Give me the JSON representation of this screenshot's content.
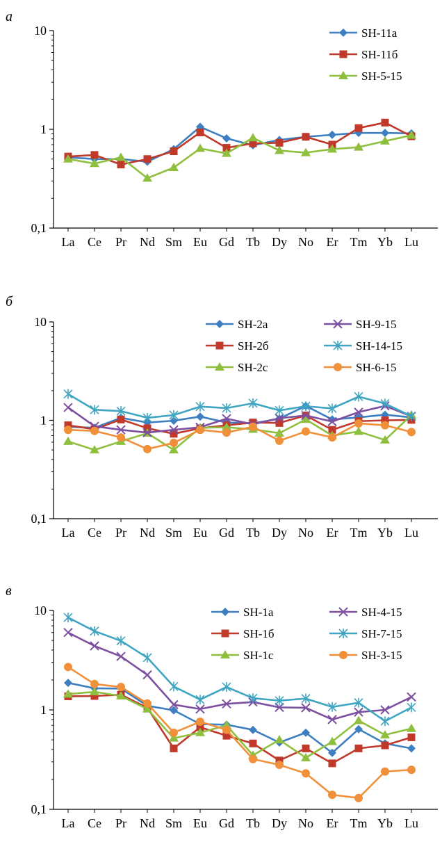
{
  "chart_data": [
    {
      "type": "line",
      "panel_label": "а",
      "yscale": "log",
      "ylim": [
        0.1,
        10
      ],
      "y_tick_labels": [
        "10",
        "1",
        "0,1"
      ],
      "categories": [
        "La",
        "Ce",
        "Pr",
        "Nd",
        "Sm",
        "Eu",
        "Gd",
        "Tb",
        "Dy",
        "No",
        "Er",
        "Tm",
        "Yb",
        "Lu"
      ],
      "legend_columns": 1,
      "legend_placement": "top-right",
      "series": [
        {
          "name": "SH-11a",
          "color": "#3e7fc1",
          "marker": "diamond",
          "values": [
            0.52,
            0.5,
            0.5,
            0.47,
            0.63,
            1.06,
            0.81,
            0.69,
            0.78,
            0.84,
            0.88,
            0.92,
            0.92,
            0.91
          ]
        },
        {
          "name": "SH-11б",
          "color": "#c0392b",
          "marker": "square",
          "values": [
            0.53,
            0.55,
            0.44,
            0.5,
            0.6,
            0.93,
            0.65,
            0.72,
            0.73,
            0.84,
            0.7,
            1.03,
            1.17,
            0.85
          ]
        },
        {
          "name": "SH-5-15",
          "color": "#8fbf3f",
          "marker": "triangle",
          "values": [
            0.5,
            0.45,
            0.52,
            0.32,
            0.41,
            0.64,
            0.57,
            0.82,
            0.61,
            0.58,
            0.63,
            0.66,
            0.76,
            0.87
          ]
        }
      ]
    },
    {
      "type": "line",
      "panel_label": "б",
      "yscale": "log",
      "ylim": [
        0.1,
        10
      ],
      "y_tick_labels": [
        "10",
        "1",
        "0,1"
      ],
      "categories": [
        "La",
        "Ce",
        "Pr",
        "Nd",
        "Sm",
        "Eu",
        "Gd",
        "Tb",
        "Dy",
        "No",
        "Er",
        "Tm",
        "Yb",
        "Lu"
      ],
      "legend_columns": 2,
      "legend_placement": "top-right",
      "series": [
        {
          "name": "SH-2a",
          "color": "#3e7fc1",
          "marker": "diamond",
          "values": [
            0.86,
            0.84,
            1.06,
            0.95,
            0.99,
            1.09,
            0.95,
            0.93,
            1.04,
            1.4,
            1.02,
            1.07,
            1.14,
            1.07
          ]
        },
        {
          "name": "SH-2б",
          "color": "#c0392b",
          "marker": "square",
          "values": [
            0.89,
            0.81,
            1.02,
            0.83,
            0.73,
            0.83,
            0.89,
            0.95,
            0.94,
            1.12,
            0.8,
            0.98,
            1.0,
            1.01
          ]
        },
        {
          "name": "SH-2c",
          "color": "#8fbf3f",
          "marker": "triangle",
          "values": [
            0.61,
            0.5,
            0.61,
            0.74,
            0.5,
            0.84,
            0.85,
            0.81,
            0.74,
            1.02,
            0.7,
            0.77,
            0.63,
            1.13
          ]
        },
        {
          "name": "SH-9-15",
          "color": "#7d4fa0",
          "marker": "x",
          "values": [
            1.35,
            0.87,
            0.8,
            0.75,
            0.8,
            0.85,
            1.04,
            0.91,
            1.05,
            1.12,
            0.97,
            1.21,
            1.4,
            1.1
          ]
        },
        {
          "name": "SH-14-15",
          "color": "#3fa5c1",
          "marker": "star",
          "values": [
            1.85,
            1.28,
            1.24,
            1.06,
            1.13,
            1.38,
            1.33,
            1.49,
            1.26,
            1.39,
            1.32,
            1.74,
            1.48,
            1.1
          ]
        },
        {
          "name": "SH-6-15",
          "color": "#f0903a",
          "marker": "circle",
          "values": [
            0.8,
            0.78,
            0.67,
            0.51,
            0.59,
            0.8,
            0.75,
            0.86,
            0.62,
            0.77,
            0.67,
            0.93,
            0.89,
            0.76
          ]
        }
      ]
    },
    {
      "type": "line",
      "panel_label": "в",
      "yscale": "log",
      "ylim": [
        0.1,
        10
      ],
      "y_tick_labels": [
        "10",
        "1",
        "0,1"
      ],
      "categories": [
        "La",
        "Ce",
        "Pr",
        "Nd",
        "Sm",
        "Eu",
        "Gd",
        "Tb",
        "Dy",
        "No",
        "Er",
        "Tm",
        "Yb",
        "Lu"
      ],
      "legend_columns": 2,
      "legend_placement": "top-right",
      "series": [
        {
          "name": "SH-1a",
          "color": "#3e7fc1",
          "marker": "diamond",
          "values": [
            1.87,
            1.65,
            1.64,
            1.1,
            0.99,
            0.72,
            0.71,
            0.63,
            0.47,
            0.59,
            0.37,
            0.64,
            0.46,
            0.41
          ]
        },
        {
          "name": "SH-1б",
          "color": "#c0392b",
          "marker": "square",
          "values": [
            1.37,
            1.38,
            1.42,
            1.05,
            0.41,
            0.67,
            0.55,
            0.46,
            0.31,
            0.41,
            0.29,
            0.41,
            0.44,
            0.53
          ]
        },
        {
          "name": "SH-1c",
          "color": "#8fbf3f",
          "marker": "triangle",
          "values": [
            1.44,
            1.52,
            1.38,
            1.02,
            0.52,
            0.59,
            0.7,
            0.35,
            0.5,
            0.33,
            0.48,
            0.78,
            0.56,
            0.65
          ]
        },
        {
          "name": "SH-4-15",
          "color": "#7d4fa0",
          "marker": "x",
          "values": [
            6.0,
            4.4,
            3.45,
            2.25,
            1.13,
            1.02,
            1.15,
            1.2,
            1.06,
            1.05,
            0.8,
            0.95,
            1.0,
            1.35
          ]
        },
        {
          "name": "SH-7-15",
          "color": "#3fa5c1",
          "marker": "star",
          "values": [
            8.5,
            6.2,
            4.95,
            3.35,
            1.72,
            1.27,
            1.7,
            1.31,
            1.24,
            1.3,
            1.07,
            1.18,
            0.77,
            1.06
          ]
        },
        {
          "name": "SH-3-15",
          "color": "#f0903a",
          "marker": "circle",
          "values": [
            2.7,
            1.82,
            1.7,
            1.16,
            0.59,
            0.76,
            0.63,
            0.32,
            0.28,
            0.23,
            0.14,
            0.13,
            0.24,
            0.25
          ]
        }
      ]
    }
  ]
}
